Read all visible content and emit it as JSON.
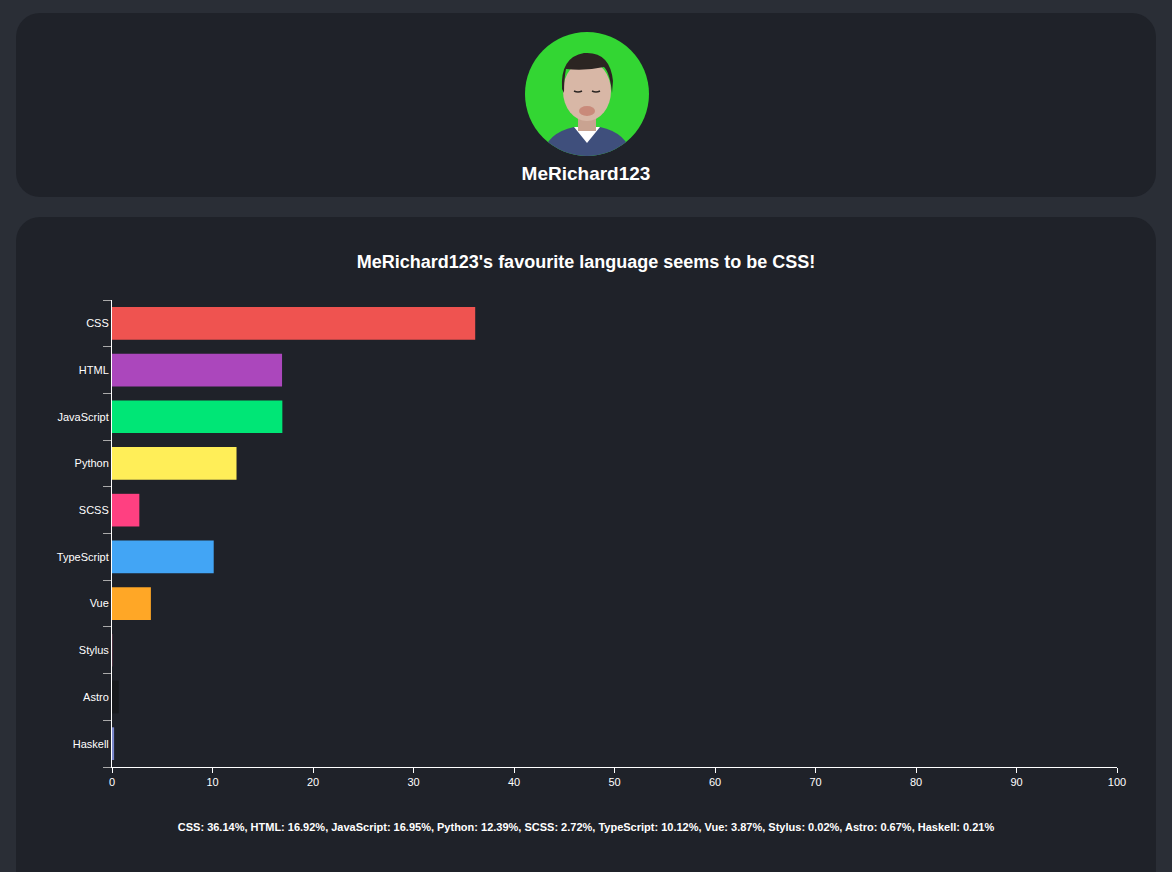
{
  "profile": {
    "username": "MeRichard123"
  },
  "chart_data": {
    "type": "bar",
    "orientation": "horizontal",
    "title": "MeRichard123's favourite language seems to be CSS!",
    "categories": [
      "CSS",
      "HTML",
      "JavaScript",
      "Python",
      "SCSS",
      "TypeScript",
      "Vue",
      "Stylus",
      "Astro",
      "Haskell"
    ],
    "values": [
      36.14,
      16.92,
      16.95,
      12.39,
      2.72,
      10.12,
      3.87,
      0.02,
      0.67,
      0.21
    ],
    "colors": [
      "#ef5350",
      "#ab47bc",
      "#00e676",
      "#ffee58",
      "#ff4081",
      "#42a5f5",
      "#ffa726",
      "#ff6699",
      "#17191c",
      "#7986cb"
    ],
    "xlim": [
      0,
      100
    ],
    "xticks": [
      0,
      10,
      20,
      30,
      40,
      50,
      60,
      70,
      80,
      90,
      100
    ],
    "grid": false,
    "caption": "CSS: 36.14%, HTML: 16.92%, JavaScript: 16.95%, Python: 12.39%, SCSS: 2.72%, TypeScript: 10.12%, Vue: 3.87%, Stylus: 0.02%, Astro: 0.67%, Haskell: 0.21%"
  }
}
